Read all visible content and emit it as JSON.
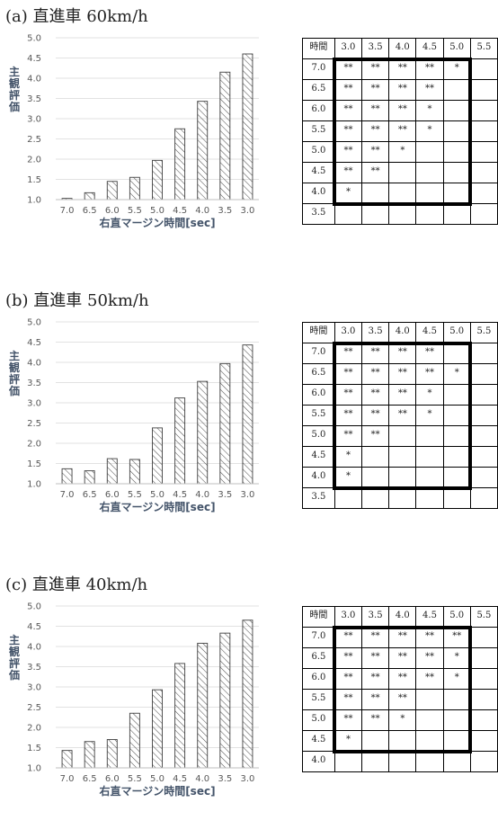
{
  "chart_data": [
    {
      "type": "bar",
      "title": "(a) 直進車 60km/h",
      "ylabel": "主観評価",
      "xlabel": "右直マージン時間[sec]",
      "ylim": [
        1.0,
        5.0
      ],
      "yticks": [
        "1.0",
        "1.5",
        "2.0",
        "2.5",
        "3.0",
        "3.5",
        "4.0",
        "4.5",
        "5.0"
      ],
      "categories": [
        "7.0",
        "6.5",
        "6.0",
        "5.5",
        "5.0",
        "4.5",
        "4.0",
        "3.5",
        "3.0"
      ],
      "values": [
        1.03,
        1.17,
        1.45,
        1.55,
        1.97,
        2.75,
        3.43,
        4.15,
        4.6
      ],
      "grid": true
    },
    {
      "type": "bar",
      "title": "(b) 直進車 50km/h",
      "ylabel": "主観評価",
      "xlabel": "右直マージン時間[sec]",
      "ylim": [
        1.0,
        5.0
      ],
      "yticks": [
        "1.0",
        "1.5",
        "2.0",
        "2.5",
        "3.0",
        "3.5",
        "4.0",
        "4.5",
        "5.0"
      ],
      "categories": [
        "7.0",
        "6.5",
        "6.0",
        "5.5",
        "5.0",
        "4.5",
        "4.0",
        "3.5",
        "3.0"
      ],
      "values": [
        1.37,
        1.32,
        1.62,
        1.6,
        2.38,
        3.12,
        3.53,
        3.97,
        4.43
      ],
      "grid": true
    },
    {
      "type": "bar",
      "title": "(c) 直進車 40km/h",
      "ylabel": "主観評価",
      "xlabel": "右直マージン時間[sec]",
      "ylim": [
        1.0,
        5.0
      ],
      "yticks": [
        "1.0",
        "1.5",
        "2.0",
        "2.5",
        "3.0",
        "3.5",
        "4.0",
        "4.5",
        "5.0"
      ],
      "categories": [
        "7.0",
        "6.5",
        "6.0",
        "5.5",
        "5.0",
        "4.5",
        "4.0",
        "3.5",
        "3.0"
      ],
      "values": [
        1.43,
        1.65,
        1.7,
        2.35,
        2.93,
        3.58,
        4.08,
        4.33,
        4.65
      ],
      "grid": true
    }
  ],
  "tables": [
    {
      "corner": "時間",
      "columns": [
        "3.0",
        "3.5",
        "4.0",
        "4.5",
        "5.0",
        "5.5"
      ],
      "rows": [
        {
          "label": "7.0",
          "cells": [
            "**",
            "**",
            "**",
            "**",
            "*",
            ""
          ]
        },
        {
          "label": "6.5",
          "cells": [
            "**",
            "**",
            "**",
            "**",
            "",
            ""
          ]
        },
        {
          "label": "6.0",
          "cells": [
            "**",
            "**",
            "**",
            "*",
            "",
            ""
          ]
        },
        {
          "label": "5.5",
          "cells": [
            "**",
            "**",
            "**",
            "*",
            "",
            ""
          ]
        },
        {
          "label": "5.0",
          "cells": [
            "**",
            "**",
            "*",
            "",
            "",
            ""
          ]
        },
        {
          "label": "4.5",
          "cells": [
            "**",
            "**",
            "",
            "",
            "",
            ""
          ]
        },
        {
          "label": "4.0",
          "cells": [
            "*",
            "",
            "",
            "",
            "",
            ""
          ]
        },
        {
          "label": "3.5",
          "cells": [
            "",
            "",
            "",
            "",
            "",
            ""
          ]
        }
      ]
    },
    {
      "corner": "時間",
      "columns": [
        "3.0",
        "3.5",
        "4.0",
        "4.5",
        "5.0",
        "5.5"
      ],
      "rows": [
        {
          "label": "7.0",
          "cells": [
            "**",
            "**",
            "**",
            "**",
            "",
            ""
          ]
        },
        {
          "label": "6.5",
          "cells": [
            "**",
            "**",
            "**",
            "**",
            "*",
            ""
          ]
        },
        {
          "label": "6.0",
          "cells": [
            "**",
            "**",
            "**",
            "*",
            "",
            ""
          ]
        },
        {
          "label": "5.5",
          "cells": [
            "**",
            "**",
            "**",
            "*",
            "",
            ""
          ]
        },
        {
          "label": "5.0",
          "cells": [
            "**",
            "**",
            "",
            "",
            "",
            ""
          ]
        },
        {
          "label": "4.5",
          "cells": [
            "*",
            "",
            "",
            "",
            "",
            ""
          ]
        },
        {
          "label": "4.0",
          "cells": [
            "*",
            "",
            "",
            "",
            "",
            ""
          ]
        },
        {
          "label": "3.5",
          "cells": [
            "",
            "",
            "",
            "",
            "",
            ""
          ]
        }
      ]
    },
    {
      "corner": "時間",
      "columns": [
        "3.0",
        "3.5",
        "4.0",
        "4.5",
        "5.0",
        "5.5"
      ],
      "rows": [
        {
          "label": "7.0",
          "cells": [
            "**",
            "**",
            "**",
            "**",
            "**",
            ""
          ]
        },
        {
          "label": "6.5",
          "cells": [
            "**",
            "**",
            "**",
            "**",
            "*",
            ""
          ]
        },
        {
          "label": "6.0",
          "cells": [
            "**",
            "**",
            "**",
            "**",
            "*",
            ""
          ]
        },
        {
          "label": "5.5",
          "cells": [
            "**",
            "**",
            "**",
            "",
            "",
            ""
          ]
        },
        {
          "label": "5.0",
          "cells": [
            "**",
            "**",
            "*",
            "",
            "",
            ""
          ]
        },
        {
          "label": "4.5",
          "cells": [
            "*",
            "",
            "",
            "",
            "",
            ""
          ]
        },
        {
          "label": "4.0",
          "cells": [
            "",
            "",
            "",
            "",
            "",
            ""
          ]
        }
      ]
    }
  ]
}
